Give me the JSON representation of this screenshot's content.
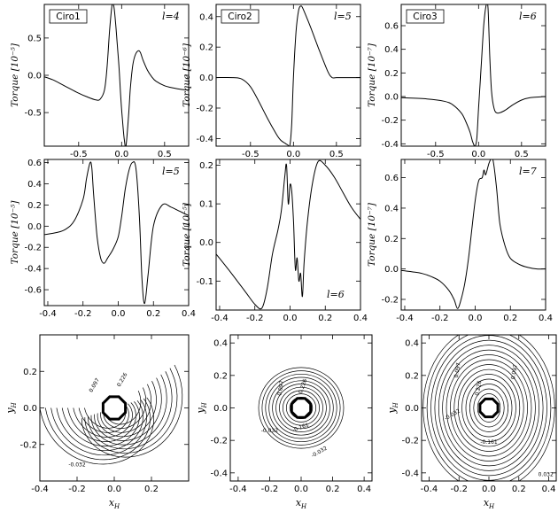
{
  "chart_data": [
    {
      "type": "line",
      "id": "p1",
      "box_label": "Ciro1",
      "l_label": "l=4",
      "ylabel": "Torque",
      "yunit": "[10⁻⁵]",
      "xlim": [
        -0.9,
        0.78
      ],
      "ylim": [
        -0.95,
        0.95
      ],
      "xticks": [
        -0.5,
        0.0,
        0.5
      ],
      "yticks": [
        -0.5,
        0.0,
        0.5
      ],
      "x": [
        -0.9,
        -0.8,
        -0.7,
        -0.6,
        -0.5,
        -0.4,
        -0.3,
        -0.25,
        -0.2,
        -0.17,
        -0.14,
        -0.11,
        -0.09,
        -0.07,
        -0.05,
        -0.03,
        -0.01,
        0.01,
        0.03,
        0.05,
        0.08,
        0.1,
        0.12,
        0.14,
        0.17,
        0.2,
        0.22,
        0.25,
        0.3,
        0.35,
        0.4,
        0.5,
        0.6,
        0.7,
        0.78
      ],
      "y": [
        -0.02,
        -0.06,
        -0.12,
        -0.18,
        -0.24,
        -0.29,
        -0.33,
        -0.32,
        -0.2,
        0.1,
        0.6,
        0.95,
        0.92,
        0.7,
        0.4,
        0.1,
        -0.3,
        -0.6,
        -0.85,
        -0.95,
        -0.55,
        -0.2,
        0.05,
        0.2,
        0.3,
        0.33,
        0.3,
        0.2,
        0.07,
        -0.02,
        -0.08,
        -0.14,
        -0.17,
        -0.19,
        -0.2
      ]
    },
    {
      "type": "line",
      "id": "p2",
      "box_label": "Ciro2",
      "l_label": "l=5",
      "ylabel": "Torque",
      "yunit": "[10⁻⁶]",
      "xlim": [
        -0.9,
        0.78
      ],
      "ylim": [
        -0.45,
        0.48
      ],
      "xticks": [
        -0.5,
        0.0,
        0.5
      ],
      "yticks": [
        -0.4,
        -0.2,
        0.0,
        0.2,
        0.4
      ],
      "x": [
        -0.9,
        -0.7,
        -0.6,
        -0.5,
        -0.4,
        -0.3,
        -0.2,
        -0.15,
        -0.1,
        -0.07,
        -0.04,
        -0.02,
        0.0,
        0.03,
        0.06,
        0.09,
        0.12,
        0.15,
        0.2,
        0.3,
        0.4,
        0.45,
        0.5,
        0.6,
        0.78
      ],
      "y": [
        0.0,
        0.0,
        -0.01,
        -0.06,
        -0.16,
        -0.27,
        -0.37,
        -0.41,
        -0.43,
        -0.44,
        -0.44,
        -0.3,
        0.0,
        0.3,
        0.44,
        0.47,
        0.44,
        0.4,
        0.33,
        0.18,
        0.04,
        0.0,
        0.0,
        0.0,
        0.0
      ]
    },
    {
      "type": "line",
      "id": "p3",
      "box_label": "Ciro3",
      "l_label": "l=6",
      "ylabel": "Torque",
      "yunit": "[10⁻⁷]",
      "xlim": [
        -0.9,
        0.78
      ],
      "ylim": [
        -0.42,
        0.78
      ],
      "xticks": [
        -0.5,
        0.0,
        0.5
      ],
      "yticks": [
        -0.4,
        -0.2,
        0.0,
        0.2,
        0.4,
        0.6
      ],
      "x": [
        -0.9,
        -0.6,
        -0.4,
        -0.3,
        -0.2,
        -0.15,
        -0.1,
        -0.07,
        -0.04,
        -0.02,
        0.0,
        0.03,
        0.06,
        0.09,
        0.11,
        0.13,
        0.15,
        0.18,
        0.22,
        0.3,
        0.4,
        0.5,
        0.6,
        0.78
      ],
      "y": [
        -0.01,
        -0.02,
        -0.04,
        -0.07,
        -0.14,
        -0.21,
        -0.3,
        -0.38,
        -0.42,
        -0.35,
        -0.1,
        0.25,
        0.6,
        0.78,
        0.75,
        0.35,
        0.05,
        -0.1,
        -0.14,
        -0.12,
        -0.07,
        -0.03,
        -0.01,
        0.0
      ]
    },
    {
      "type": "line",
      "id": "p4",
      "l_label": "l=5",
      "ylabel": "Torque",
      "yunit": "[10⁻⁵]",
      "xlim": [
        -0.42,
        0.4
      ],
      "ylim": [
        -0.75,
        0.63
      ],
      "xticks": [
        -0.4,
        -0.2,
        0.0,
        0.2,
        0.4
      ],
      "yticks": [
        -0.6,
        -0.4,
        -0.2,
        0.0,
        0.2,
        0.4,
        0.6
      ],
      "x": [
        -0.42,
        -0.35,
        -0.3,
        -0.25,
        -0.2,
        -0.18,
        -0.16,
        -0.15,
        -0.14,
        -0.12,
        -0.1,
        -0.08,
        -0.06,
        -0.03,
        0.0,
        0.02,
        0.04,
        0.06,
        0.08,
        0.1,
        0.12,
        0.135,
        0.15,
        0.17,
        0.2,
        0.25,
        0.3,
        0.35,
        0.4
      ],
      "y": [
        -0.08,
        -0.06,
        -0.03,
        0.05,
        0.25,
        0.45,
        0.6,
        0.55,
        0.3,
        -0.1,
        -0.3,
        -0.35,
        -0.3,
        -0.22,
        -0.1,
        0.1,
        0.35,
        0.52,
        0.6,
        0.55,
        0.1,
        -0.5,
        -0.73,
        -0.45,
        0.0,
        0.2,
        0.18,
        0.14,
        0.1
      ]
    },
    {
      "type": "line",
      "id": "p5",
      "l_label": "l=6",
      "ylabel": "Torque",
      "yunit": "[10⁻⁵]",
      "xlim": [
        -0.42,
        0.4
      ],
      "ylim": [
        -0.175,
        0.215
      ],
      "xticks": [
        -0.4,
        -0.2,
        0.0,
        0.2,
        0.4
      ],
      "yticks": [
        -0.1,
        0.0,
        0.1,
        0.2
      ],
      "x": [
        -0.42,
        -0.35,
        -0.3,
        -0.25,
        -0.2,
        -0.16,
        -0.13,
        -0.1,
        -0.07,
        -0.05,
        -0.03,
        -0.02,
        -0.01,
        0.0,
        0.01,
        0.02,
        0.03,
        0.04,
        0.05,
        0.06,
        0.07,
        0.08,
        0.1,
        0.13,
        0.16,
        0.2,
        0.25,
        0.3,
        0.35,
        0.4
      ],
      "y": [
        -0.03,
        -0.07,
        -0.1,
        -0.13,
        -0.16,
        -0.17,
        -0.12,
        -0.03,
        0.03,
        0.08,
        0.17,
        0.2,
        0.1,
        0.15,
        0.13,
        0.05,
        -0.07,
        -0.04,
        -0.1,
        -0.08,
        -0.14,
        -0.05,
        0.06,
        0.16,
        0.21,
        0.2,
        0.17,
        0.13,
        0.09,
        0.06
      ]
    },
    {
      "type": "line",
      "id": "p6",
      "l_label": "l=7",
      "ylabel": "Torque",
      "yunit": "[10⁻⁷]",
      "xlim": [
        -0.42,
        0.4
      ],
      "ylim": [
        -0.27,
        0.72
      ],
      "xticks": [
        -0.4,
        -0.2,
        0.0,
        0.2,
        0.4
      ],
      "yticks": [
        -0.2,
        0.0,
        0.2,
        0.4,
        0.6
      ],
      "x": [
        -0.42,
        -0.35,
        -0.3,
        -0.25,
        -0.2,
        -0.15,
        -0.12,
        -0.1,
        -0.08,
        -0.06,
        -0.04,
        -0.02,
        0.0,
        0.02,
        0.04,
        0.05,
        0.06,
        0.08,
        0.1,
        0.12,
        0.14,
        0.17,
        0.2,
        0.25,
        0.3,
        0.35,
        0.4
      ],
      "y": [
        -0.01,
        -0.02,
        -0.03,
        -0.05,
        -0.08,
        -0.14,
        -0.2,
        -0.26,
        -0.2,
        -0.1,
        0.05,
        0.25,
        0.45,
        0.58,
        0.6,
        0.65,
        0.62,
        0.7,
        0.72,
        0.55,
        0.3,
        0.15,
        0.07,
        0.03,
        0.01,
        0.0,
        0.0
      ]
    },
    {
      "type": "contour",
      "id": "c1",
      "pattern": "spiral",
      "ylabel": "y",
      "ysub": "H",
      "xlabel": "x",
      "xsub": "H",
      "xlim": [
        -0.4,
        0.4
      ],
      "ylim": [
        -0.4,
        0.4
      ],
      "xticks": [
        -0.4,
        -0.2,
        0.0,
        0.2
      ],
      "yticks": [
        -0.2,
        0.0,
        0.2
      ],
      "contour_labels": [
        "0.097",
        "0.226",
        "-0.032"
      ]
    },
    {
      "type": "contour",
      "id": "c2",
      "pattern": "dipole",
      "ylabel": "y",
      "ysub": "H",
      "xlabel": "x",
      "xsub": "H",
      "xlim": [
        -0.45,
        0.45
      ],
      "ylim": [
        -0.45,
        0.45
      ],
      "xticks": [
        -0.4,
        -0.2,
        0.0,
        0.2,
        0.4
      ],
      "yticks": [
        -0.4,
        -0.2,
        0.0,
        0.2,
        0.4
      ],
      "contour_labels": [
        "0.097",
        "0.226",
        "-0.032",
        "-0.161",
        "-0.032"
      ]
    },
    {
      "type": "contour",
      "id": "c3",
      "pattern": "dipole-wide",
      "ylabel": "y",
      "ysub": "H",
      "xlabel": "x",
      "xsub": "H",
      "xlim": [
        -0.45,
        0.45
      ],
      "ylim": [
        -0.45,
        0.45
      ],
      "xticks": [
        -0.4,
        -0.2,
        0.0,
        0.2,
        0.4
      ],
      "yticks": [
        -0.4,
        -0.2,
        0.0,
        0.2,
        0.4
      ],
      "contour_labels": [
        "0.097",
        "0.226",
        "0.097",
        "-0.032",
        "-0.161",
        "0.032"
      ]
    }
  ]
}
